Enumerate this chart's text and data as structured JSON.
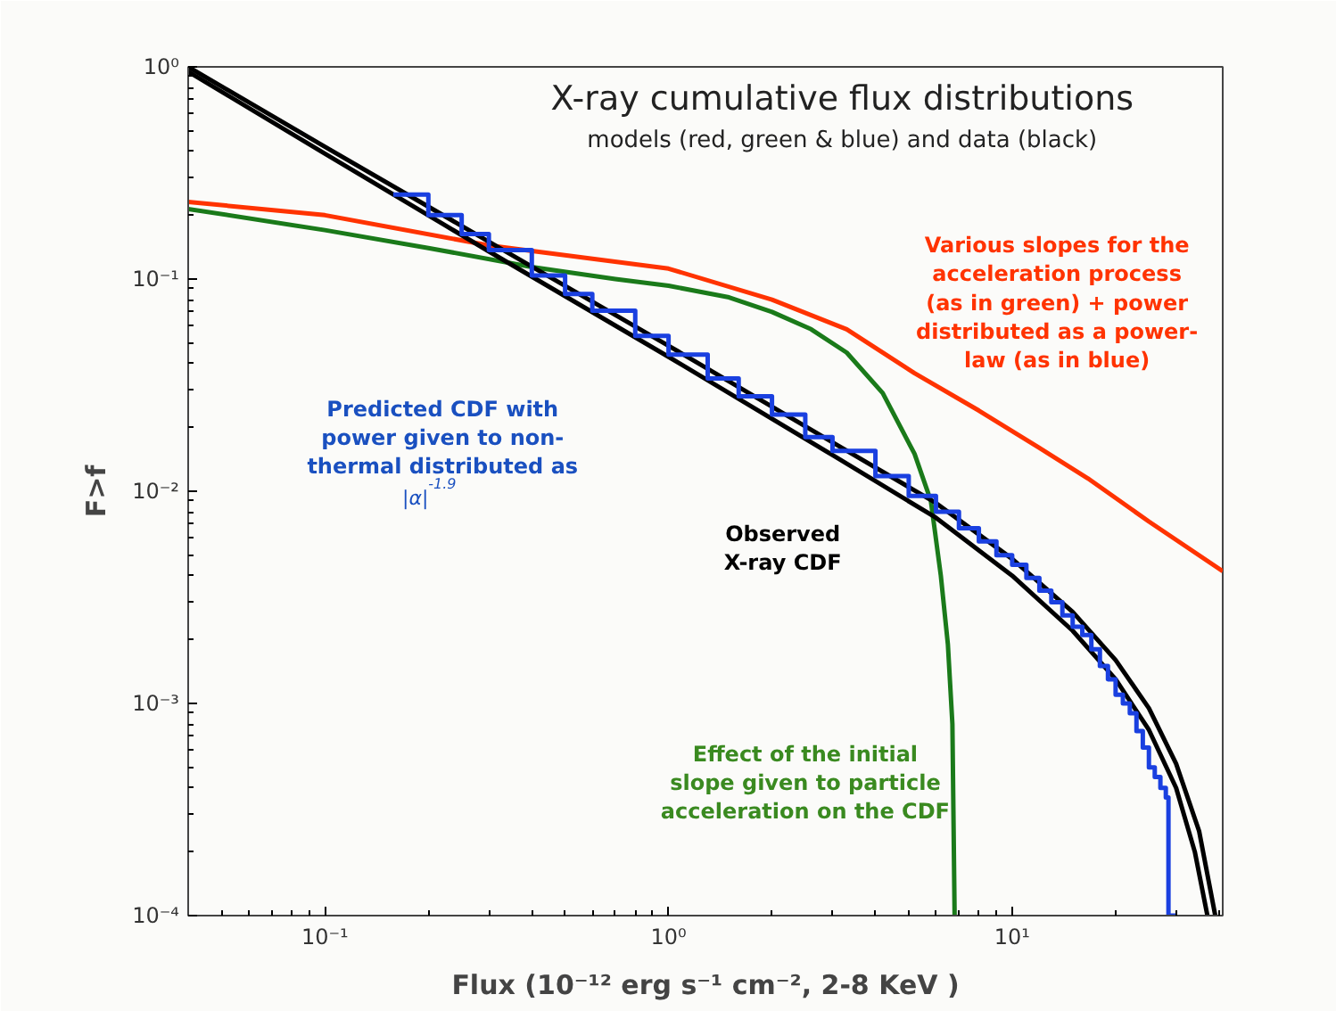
{
  "chart_data": {
    "type": "line",
    "title": "X-ray cumulative flux distributions",
    "subtitle": "models (red, green & blue) and data (black)",
    "xlabel": "Flux (10⁻¹² erg s⁻¹ cm⁻², 2-8 KeV )",
    "ylabel": "F>f",
    "log": "xy",
    "grid": false,
    "marker": "none",
    "line_style": "solid",
    "xlim": [
      0.04,
      41
    ],
    "ylim": [
      0.0001,
      1
    ],
    "xticks": [
      {
        "value": 0.1,
        "label": "10⁻¹"
      },
      {
        "value": 1,
        "label": "10⁰"
      },
      {
        "value": 10,
        "label": "10¹"
      }
    ],
    "yticks": [
      {
        "value": 0.0001,
        "label": "10⁻⁴"
      },
      {
        "value": 0.001,
        "label": "10⁻³"
      },
      {
        "value": 0.01,
        "label": "10⁻²"
      },
      {
        "value": 0.1,
        "label": "10⁻¹"
      },
      {
        "value": 1,
        "label": "10⁰"
      }
    ],
    "series": [
      {
        "color": "#ff3300",
        "x": [
          0.04,
          0.1,
          0.3,
          1,
          2,
          3.3,
          5.2,
          8,
          12,
          16.6,
          25,
          41
        ],
        "values": [
          0.231,
          0.2,
          0.144,
          0.112,
          0.08,
          0.058,
          0.036,
          0.024,
          0.016,
          0.0115,
          0.0072,
          0.0042
        ]
      },
      {
        "color": "#1a7a1a",
        "x": [
          0.04,
          0.1,
          0.2,
          0.4,
          0.7,
          1,
          1.5,
          2,
          2.6,
          3.3,
          4.2,
          5.2,
          5.8,
          6.2,
          6.5,
          6.7,
          6.8
        ],
        "values": [
          0.214,
          0.17,
          0.14,
          0.114,
          0.1,
          0.093,
          0.082,
          0.07,
          0.058,
          0.045,
          0.029,
          0.015,
          0.009,
          0.004,
          0.0019,
          0.0008,
          0.0001
        ]
      },
      {
        "color": "#000000",
        "x": [
          0.04,
          0.1,
          0.3,
          1,
          3,
          6,
          10,
          15,
          20,
          25,
          30,
          35,
          39
        ],
        "values": [
          1.0,
          0.42,
          0.15,
          0.0485,
          0.017,
          0.0088,
          0.0048,
          0.0027,
          0.0016,
          0.00095,
          0.00052,
          0.00025,
          0.0001
        ]
      },
      {
        "color": "#000000",
        "x": [
          0.04,
          0.1,
          0.3,
          1,
          3,
          6,
          10,
          15,
          20,
          25,
          30,
          34,
          37
        ],
        "values": [
          0.95,
          0.39,
          0.135,
          0.043,
          0.0148,
          0.0075,
          0.004,
          0.0022,
          0.0013,
          0.00075,
          0.0004,
          0.0002,
          0.0001
        ]
      },
      {
        "type": "step",
        "color": "#1a40e0",
        "x": [
          0.158,
          0.2,
          0.25,
          0.3,
          0.4,
          0.5,
          0.6,
          0.8,
          1,
          1.3,
          1.6,
          2,
          2.5,
          3,
          4,
          5,
          6,
          7,
          8,
          9,
          10,
          11,
          12,
          13,
          14,
          15,
          16,
          17,
          18,
          19,
          20,
          21,
          22,
          23,
          24,
          25,
          26,
          27,
          28,
          28.5,
          30
        ],
        "values": [
          0.25,
          0.2,
          0.163,
          0.137,
          0.104,
          0.085,
          0.071,
          0.054,
          0.044,
          0.034,
          0.028,
          0.023,
          0.018,
          0.0155,
          0.0118,
          0.0095,
          0.008,
          0.0067,
          0.0058,
          0.005,
          0.0045,
          0.0039,
          0.0034,
          0.003,
          0.0026,
          0.0023,
          0.0021,
          0.0018,
          0.0015,
          0.0013,
          0.0011,
          0.001,
          0.0009,
          0.00074,
          0.00062,
          0.0005,
          0.00045,
          0.0004,
          0.00036,
          0.0001,
          0.0001
        ]
      }
    ],
    "annotations": [
      "Various slopes for the\nacceleration process\n(as in green) + power\ndistributed as a power-\nlaw (as in blue)",
      "Predicted CDF with\npower given to non-\nthermal distributed as",
      "|α|$^{-1.9}$",
      "Observed\nX-ray CDF",
      "Effect of the initial\nslope given to particle\nacceleration on the CDF"
    ]
  }
}
